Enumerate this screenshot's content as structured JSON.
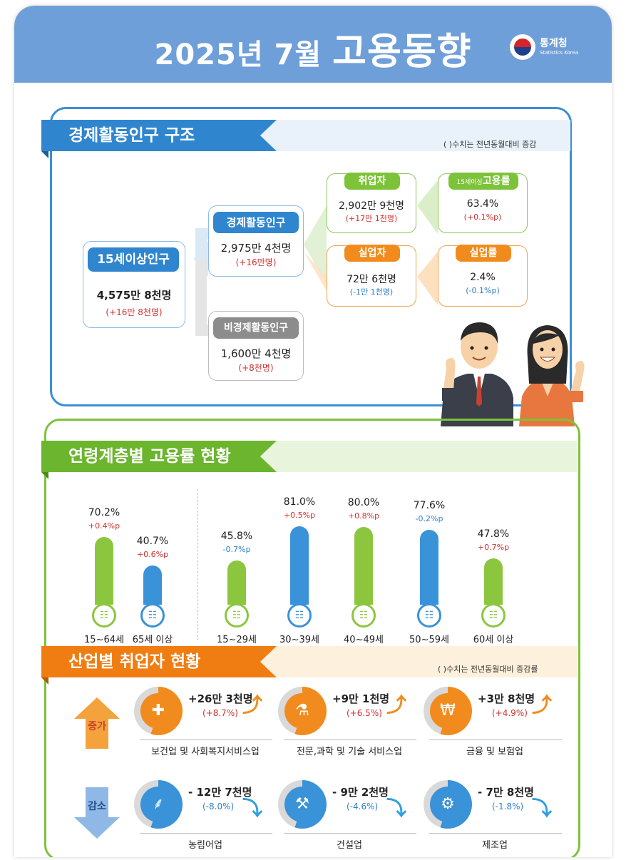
{
  "header": {
    "year": "2025년",
    "month": "7월",
    "title": "고용동향",
    "logo_name": "통계청",
    "logo_sub": "Statistics Korea"
  },
  "structure": {
    "title": "경제활동인구 구조",
    "note": "( )수치는 전년동월대비 증감",
    "pop15": {
      "label": "15세이상인구",
      "value": "4,575만 8천명",
      "change": "(+16만 8천명)"
    },
    "econ_active": {
      "label": "경제활동인구",
      "value": "2,975만 4천명",
      "change": "(+16만명)"
    },
    "non_econ": {
      "label": "비경제활동인구",
      "value": "1,600만 4천명",
      "change": "(+8천명)"
    },
    "employed": {
      "label": "취업자",
      "value": "2,902만 9천명",
      "change": "(+17만 1천명)"
    },
    "unemployed": {
      "label": "실업자",
      "value": "72만 6천명",
      "change": "(-1만 1천명)"
    },
    "emp_rate": {
      "label_small": "15세이상",
      "label": "고용률",
      "value": "63.4%",
      "change": "(+0.1%p)"
    },
    "unemp_rate": {
      "label": "실업률",
      "value": "2.4%",
      "change": "(-0.1%p)"
    }
  },
  "age": {
    "title": "연령계층별 고용률 현황",
    "bars": [
      {
        "age": "15~64세",
        "pct": "70.2%",
        "chg": "+0.4%p",
        "value": 70.2,
        "color": "green"
      },
      {
        "age": "65세 이상",
        "pct": "40.7%",
        "chg": "+0.6%p",
        "value": 40.7,
        "color": "blue"
      },
      {
        "age": "15~29세",
        "pct": "45.8%",
        "chg": "-0.7%p",
        "value": 45.8,
        "color": "green"
      },
      {
        "age": "30~39세",
        "pct": "81.0%",
        "chg": "+0.5%p",
        "value": 81.0,
        "color": "blue"
      },
      {
        "age": "40~49세",
        "pct": "80.0%",
        "chg": "+0.8%p",
        "value": 80.0,
        "color": "green"
      },
      {
        "age": "50~59세",
        "pct": "77.6%",
        "chg": "-0.2%p",
        "value": 77.6,
        "color": "blue"
      },
      {
        "age": "60세 이상",
        "pct": "47.8%",
        "chg": "+0.7%p",
        "value": 47.8,
        "color": "green"
      }
    ]
  },
  "industry": {
    "title": "산업별 취업자 현황",
    "note": "( )수치는 전년동월대비 증감률",
    "increase_label": "증가",
    "decrease_label": "감소",
    "increase": [
      {
        "name": "보건업 및 사회복지서비스업",
        "value": "+26만 3천명",
        "change": "(+8.7%)",
        "icon": "medical-kit-icon"
      },
      {
        "name": "전문,과학 및 기술 서비스업",
        "value": "+9만 1천명",
        "change": "(+6.5%)",
        "icon": "lab-flask-icon"
      },
      {
        "name": "금융 및 보험업",
        "value": "+3만 8천명",
        "change": "(+4.9%)",
        "icon": "won-laptop-icon"
      }
    ],
    "decrease": [
      {
        "name": "농림어업",
        "value": "- 12만 7천명",
        "change": "(-8.0%)",
        "icon": "wheat-icon"
      },
      {
        "name": "건설업",
        "value": "- 9만 2천명",
        "change": "(-4.6%)",
        "icon": "excavator-icon"
      },
      {
        "name": "제조업",
        "value": "- 7만 8천명",
        "change": "(-1.8%)",
        "icon": "gears-icon"
      }
    ]
  }
}
